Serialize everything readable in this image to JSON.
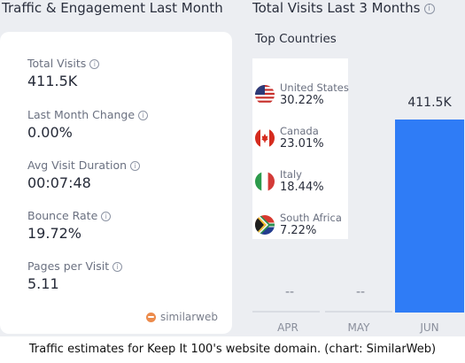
{
  "left_heading": "Traffic & Engagement Last Month",
  "right_heading": "Total Visits Last 3 Months",
  "metrics": [
    {
      "label": "Total Visits",
      "value": "411.5K"
    },
    {
      "label": "Last Month Change",
      "value": "0.00%"
    },
    {
      "label": "Avg Visit Duration",
      "value": "00:07:48"
    },
    {
      "label": "Bounce Rate",
      "value": "19.72%"
    },
    {
      "label": "Pages per Visit",
      "value": "5.11"
    }
  ],
  "brand": "similarweb",
  "top_countries": {
    "title": "Top Countries",
    "items": [
      {
        "name": "United States",
        "share": "30.22%"
      },
      {
        "name": "Canada",
        "share": "23.01%"
      },
      {
        "name": "Italy",
        "share": "18.44%"
      },
      {
        "name": "South Africa",
        "share": "7.22%"
      }
    ]
  },
  "chart_data": {
    "type": "bar",
    "categories": [
      "APR",
      "MAY",
      "JUN"
    ],
    "values": [
      null,
      null,
      411.5
    ],
    "data_labels": [
      "--",
      "--",
      "411.5K"
    ],
    "ylim": [
      0,
      411.5
    ]
  },
  "colors": {
    "bar": "#2f7cf6",
    "brand_mark": "#ec8b4c",
    "panel_background": "#eceef2"
  },
  "caption": "Traffic estimates for Keep It 100's website domain. (chart: SimilarWeb)"
}
